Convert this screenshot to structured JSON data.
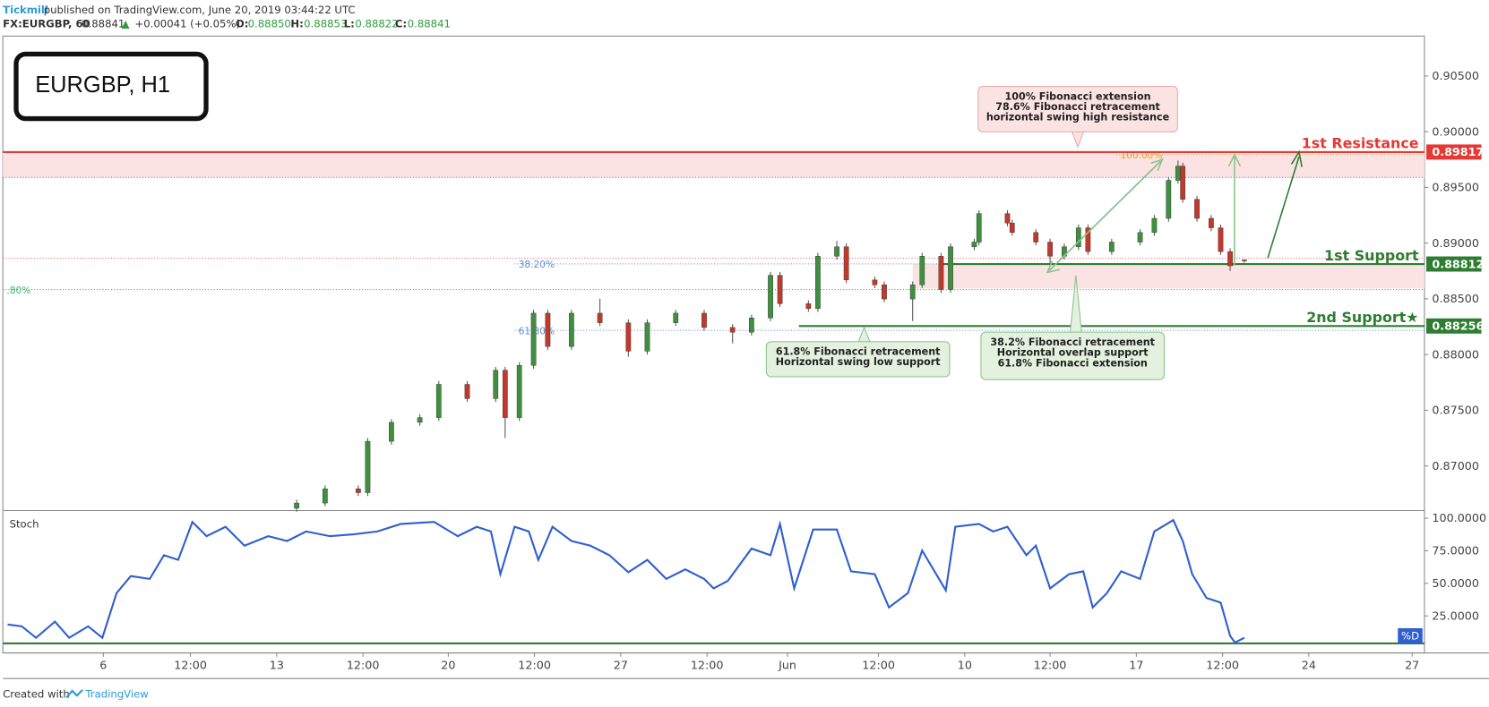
{
  "header": {
    "brand": "Tickmill",
    "published": "published on TradingView.com, June 20, 2019 03:44:22 UTC",
    "symbol": "FX:EURGBP, 60",
    "last": "0.88841",
    "arrow": "▲",
    "change": "+0.00041 (+0.05%)",
    "o_label": "O:",
    "o": "0.88850",
    "h_label": "H:",
    "h": "0.88853",
    "l_label": "L:",
    "l": "0.88822",
    "c_label": "C:",
    "c": "0.88841"
  },
  "title_box": "EURGBP, H1",
  "footer": {
    "created": "Created with",
    "brand": "TradingView"
  },
  "chart_data": [
    {
      "type": "candlestick",
      "up_color": "#3f8f3f",
      "down_color": "#c0392b",
      "xlim": [
        0,
        300
      ],
      "ylim": [
        0.86608,
        0.90858
      ],
      "yticks": [
        {
          "value": 0.87,
          "label": "0.87000"
        },
        {
          "value": 0.875,
          "label": "0.87500"
        },
        {
          "value": 0.88,
          "label": "0.88000"
        },
        {
          "value": 0.885,
          "label": "0.88500"
        },
        {
          "value": 0.89,
          "label": "0.89000"
        },
        {
          "value": 0.895,
          "label": "0.89500"
        },
        {
          "value": 0.9,
          "label": "0.90000"
        },
        {
          "value": 0.905,
          "label": "0.90500"
        }
      ],
      "x": [
        62,
        68,
        75,
        77,
        82,
        88,
        92,
        98,
        104,
        106,
        109,
        112,
        115,
        120,
        126,
        132,
        136,
        142,
        148,
        154,
        158,
        162,
        164,
        170,
        172,
        176,
        178,
        184,
        186,
        192,
        194,
        198,
        200,
        205,
        206,
        212,
        213,
        218,
        221,
        224,
        227,
        229,
        234,
        240,
        243,
        246,
        248,
        249,
        252,
        255,
        257,
        259,
        262
      ],
      "open": [
        0.8662,
        0.86667,
        0.86795,
        0.8676,
        0.87221,
        0.87391,
        0.87434,
        0.87732,
        0.87604,
        0.87859,
        0.87434,
        0.87902,
        0.88371,
        0.88072,
        0.88371,
        0.88285,
        0.8803,
        0.88285,
        0.88371,
        0.88243,
        0.882,
        0.88328,
        0.88711,
        0.88456,
        0.88413,
        0.88882,
        0.88967,
        0.88669,
        0.88626,
        0.88498,
        0.88626,
        0.88882,
        0.88583,
        0.88967,
        0.89009,
        0.89265,
        0.8918,
        0.89095,
        0.89009,
        0.88882,
        0.88967,
        0.89137,
        0.88924,
        0.89009,
        0.89095,
        0.89222,
        0.89563,
        0.89691,
        0.89393,
        0.89222,
        0.89137,
        0.88924,
        0.8885
      ],
      "high": [
        0.86697,
        0.86825,
        0.86825,
        0.87251,
        0.87421,
        0.87464,
        0.87762,
        0.87762,
        0.87889,
        0.87889,
        0.87932,
        0.88401,
        0.88401,
        0.88401,
        0.885,
        0.88315,
        0.88315,
        0.88401,
        0.88401,
        0.88273,
        0.88358,
        0.88741,
        0.88741,
        0.88486,
        0.88912,
        0.8902,
        0.88997,
        0.88699,
        0.88656,
        0.88656,
        0.88912,
        0.88912,
        0.88997,
        0.89039,
        0.89295,
        0.89295,
        0.8921,
        0.89125,
        0.89039,
        0.88997,
        0.89167,
        0.89167,
        0.89039,
        0.89125,
        0.89252,
        0.89593,
        0.8974,
        0.89721,
        0.89423,
        0.89252,
        0.89167,
        0.88954,
        0.88853
      ],
      "low": [
        0.8659,
        0.86637,
        0.8673,
        0.8673,
        0.87191,
        0.87361,
        0.87404,
        0.87574,
        0.87574,
        0.8725,
        0.87404,
        0.87872,
        0.88042,
        0.88042,
        0.88255,
        0.8798,
        0.88,
        0.88255,
        0.88213,
        0.881,
        0.8817,
        0.88298,
        0.88426,
        0.88383,
        0.88383,
        0.88852,
        0.88639,
        0.88596,
        0.88468,
        0.883,
        0.88596,
        0.88553,
        0.88553,
        0.88937,
        0.88979,
        0.8915,
        0.89065,
        0.88979,
        0.888,
        0.88852,
        0.88937,
        0.88894,
        0.88894,
        0.88979,
        0.89065,
        0.89192,
        0.89533,
        0.89363,
        0.89192,
        0.89107,
        0.88894,
        0.8875,
        0.88822
      ],
      "close": [
        0.86667,
        0.86795,
        0.8676,
        0.87221,
        0.87391,
        0.87434,
        0.87732,
        0.87604,
        0.87859,
        0.87434,
        0.87902,
        0.88371,
        0.88072,
        0.88371,
        0.88285,
        0.8803,
        0.88285,
        0.88371,
        0.88243,
        0.882,
        0.88328,
        0.88711,
        0.88456,
        0.88413,
        0.88882,
        0.88967,
        0.88669,
        0.88626,
        0.88498,
        0.88626,
        0.88882,
        0.88583,
        0.88967,
        0.89009,
        0.89265,
        0.8918,
        0.89095,
        0.89009,
        0.88882,
        0.88967,
        0.89137,
        0.88924,
        0.89009,
        0.89095,
        0.89222,
        0.89563,
        0.89691,
        0.89393,
        0.89222,
        0.89137,
        0.88924,
        0.88796,
        0.88841
      ],
      "zones": [
        {
          "from": 0.89589,
          "to": 0.89817,
          "start": 0,
          "color": "#fbe3e3"
        },
        {
          "from": 0.88592,
          "to": 0.88812,
          "start": 192,
          "color": "#fbe3e3"
        }
      ],
      "price_line": {
        "value": 0.88864,
        "color": "#e57373"
      },
      "fib_levels": [
        {
          "label": "100.00%",
          "value": 0.89793,
          "start": 235,
          "color": "#e0a030"
        },
        {
          "label": "38.20%",
          "value": 0.88813,
          "start": 108,
          "color": "#5b8fd6"
        },
        {
          "label": "61.80%",
          "value": 0.88217,
          "start": 108,
          "color": "#5b8fd6"
        },
        {
          "label": ".80%",
          "value": 0.88583,
          "start": 0,
          "color": "#3cb371"
        },
        {
          "label": "",
          "value": 0.89589,
          "start": 0,
          "color": "#7b68ee"
        }
      ],
      "levels": [
        {
          "name": "1st Resistance",
          "value": 0.89817,
          "start": 0,
          "color": "#e53935"
        },
        {
          "name": "1st Support",
          "value": 0.88812,
          "start": 198,
          "color": "#2e7d32"
        },
        {
          "name": "2nd Support★",
          "value": 0.88256,
          "start": 168,
          "color": "#2e7d32"
        }
      ],
      "annotations": [
        {
          "lines": [
            "100% Fibonacci extension",
            "78.6% Fibonacci retracement",
            "horizontal swing high resistance"
          ],
          "color": "#fbe3e3",
          "border": "#e8a9a9"
        },
        {
          "lines": [
            "61.8% Fibonacci retracement",
            "Horizontal swing low support"
          ],
          "color": "#e3f1de",
          "border": "#8bc38b"
        },
        {
          "lines": [
            "38.2% Fibonacci retracement",
            "Horizontal overlap support",
            "61.8% Fibonacci extension"
          ],
          "color": "#e3f1de",
          "border": "#8bc38b"
        }
      ]
    },
    {
      "type": "line",
      "name": "Stoch",
      "xlim": [
        0,
        300
      ],
      "ylim": [
        -3.4,
        104.4
      ],
      "yticks": [
        {
          "value": 25,
          "label": "25.0000"
        },
        {
          "value": 50,
          "label": "50.0000"
        },
        {
          "value": 75,
          "label": "75.0000"
        },
        {
          "value": 100,
          "label": "100.0000"
        }
      ],
      "xticks": [
        {
          "value": 21.2,
          "label": "6"
        },
        {
          "value": 39.6,
          "label": "12:00"
        },
        {
          "value": 57.8,
          "label": "13"
        },
        {
          "value": 76,
          "label": "12:00"
        },
        {
          "value": 94,
          "label": "20"
        },
        {
          "value": 112.2,
          "label": "12:00"
        },
        {
          "value": 130.4,
          "label": "27"
        },
        {
          "value": 148.6,
          "label": "12:00"
        },
        {
          "value": 165.6,
          "label": "Jun"
        },
        {
          "value": 184.8,
          "label": "12:00"
        },
        {
          "value": 203,
          "label": "10"
        },
        {
          "value": 221,
          "label": "12:00"
        },
        {
          "value": 239.2,
          "label": "17"
        },
        {
          "value": 257.4,
          "label": "12:00"
        },
        {
          "value": 275.6,
          "label": "24"
        },
        {
          "value": 297.4,
          "label": "27"
        }
      ],
      "series": [
        {
          "name": "%D",
          "color": "#2f5fd0",
          "x": [
            1,
            4,
            7,
            11,
            14,
            18,
            21,
            24,
            27,
            31,
            34,
            37,
            40,
            43,
            47,
            51,
            56,
            60,
            64,
            69,
            74,
            79,
            84,
            91,
            96,
            100,
            103,
            105,
            108,
            111,
            113,
            116,
            120,
            124,
            128,
            132,
            136,
            140,
            144,
            148,
            150,
            153,
            158,
            162,
            164,
            167,
            171,
            176,
            179,
            184,
            187,
            191,
            194,
            199,
            201,
            206,
            209,
            212,
            216,
            218,
            221,
            225,
            228,
            230,
            233,
            236,
            240,
            243,
            247,
            249,
            251,
            254,
            257,
            259,
            260,
            262
          ],
          "values": [
            18.4,
            17.0,
            8.2,
            20.6,
            8.2,
            17.0,
            8.2,
            42.5,
            55.6,
            53.4,
            71.6,
            68.0,
            97.1,
            86.2,
            93.4,
            78.9,
            86.2,
            82.5,
            89.8,
            86.2,
            87.6,
            89.8,
            95.6,
            97.1,
            86.2,
            93.4,
            89.8,
            57.0,
            93.4,
            89.8,
            68.0,
            93.4,
            82.5,
            78.9,
            71.6,
            58.5,
            68.0,
            53.4,
            60.7,
            53.4,
            46.1,
            51.9,
            76.7,
            71.6,
            95.6,
            46.1,
            91.3,
            91.3,
            59.2,
            57.0,
            31.5,
            42.5,
            75.2,
            44.6,
            93.4,
            95.6,
            89.8,
            93.4,
            71.6,
            78.9,
            46.1,
            57.0,
            59.2,
            31.5,
            42.5,
            59.2,
            53.4,
            89.8,
            98.5,
            82.5,
            57.0,
            38.8,
            35.2,
            9.7,
            4.6,
            8.2
          ]
        }
      ]
    }
  ]
}
